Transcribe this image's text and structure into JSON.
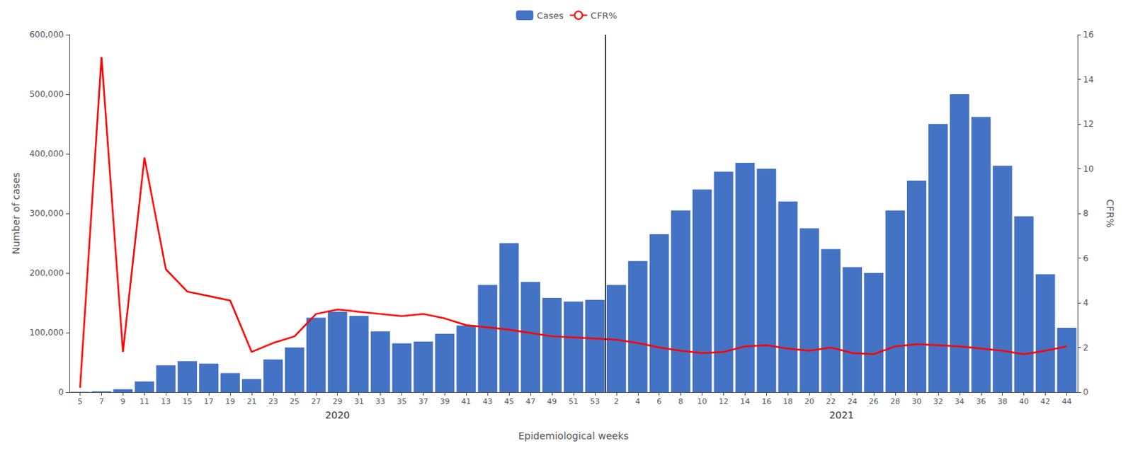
{
  "chart_data": {
    "type": "bar",
    "xlabel": "Epidemiological weeks",
    "ylabel": "Number of cases",
    "y2label": "CFR%",
    "categories": [
      "5",
      "7",
      "9",
      "11",
      "13",
      "15",
      "17",
      "19",
      "21",
      "23",
      "25",
      "27",
      "29",
      "31",
      "33",
      "35",
      "37",
      "39",
      "41",
      "43",
      "45",
      "47",
      "49",
      "51",
      "53",
      "2",
      "4",
      "6",
      "8",
      "10",
      "12",
      "14",
      "16",
      "18",
      "20",
      "22",
      "24",
      "26",
      "28",
      "30",
      "32",
      "34",
      "36",
      "38",
      "40",
      "42",
      "44"
    ],
    "series": [
      {
        "name": "Cases",
        "type": "bar",
        "color": "#4472C4",
        "values": [
          500,
          1500,
          5000,
          18000,
          45000,
          52000,
          48000,
          32000,
          22000,
          55000,
          75000,
          125000,
          135000,
          128000,
          102000,
          82000,
          85000,
          98000,
          112000,
          180000,
          250000,
          185000,
          158000,
          152000,
          155000,
          180000,
          220000,
          265000,
          305000,
          340000,
          370000,
          385000,
          375000,
          320000,
          275000,
          240000,
          210000,
          200000,
          305000,
          355000,
          450000,
          500000,
          462000,
          380000,
          295000,
          198000,
          108000
        ]
      },
      {
        "name": "CFR%",
        "type": "line",
        "axis": "y2",
        "color": "#FF0000",
        "values": [
          0.2,
          15.0,
          1.8,
          10.5,
          5.5,
          4.5,
          4.3,
          4.1,
          1.8,
          2.2,
          2.5,
          3.5,
          3.7,
          3.6,
          3.5,
          3.4,
          3.5,
          3.3,
          3.0,
          2.9,
          2.8,
          2.65,
          2.5,
          2.45,
          2.4,
          2.35,
          2.2,
          2.0,
          1.85,
          1.75,
          1.8,
          2.05,
          2.1,
          1.95,
          1.85,
          2.0,
          1.75,
          1.7,
          2.05,
          2.15,
          2.1,
          2.05,
          1.95,
          1.85,
          1.7,
          1.85,
          2.05
        ]
      }
    ],
    "ylim": [
      0,
      600000
    ],
    "yticks": [
      {
        "value": 0,
        "label": "0"
      },
      {
        "value": 100000,
        "label": "100,000"
      },
      {
        "value": 200000,
        "label": "200,000"
      },
      {
        "value": 300000,
        "label": "300,000"
      },
      {
        "value": 400000,
        "label": "400,000"
      },
      {
        "value": 500000,
        "label": "500,000"
      },
      {
        "value": 600000,
        "label": "600,000"
      }
    ],
    "y2lim": [
      0,
      16
    ],
    "y2ticks": [
      0,
      2,
      4,
      6,
      8,
      10,
      12,
      14,
      16
    ],
    "annotations": [
      {
        "text": "2020",
        "from": "5",
        "to": "53"
      },
      {
        "text": "2021",
        "from": "2",
        "to": "44"
      }
    ],
    "legend": "top",
    "grid": false
  }
}
